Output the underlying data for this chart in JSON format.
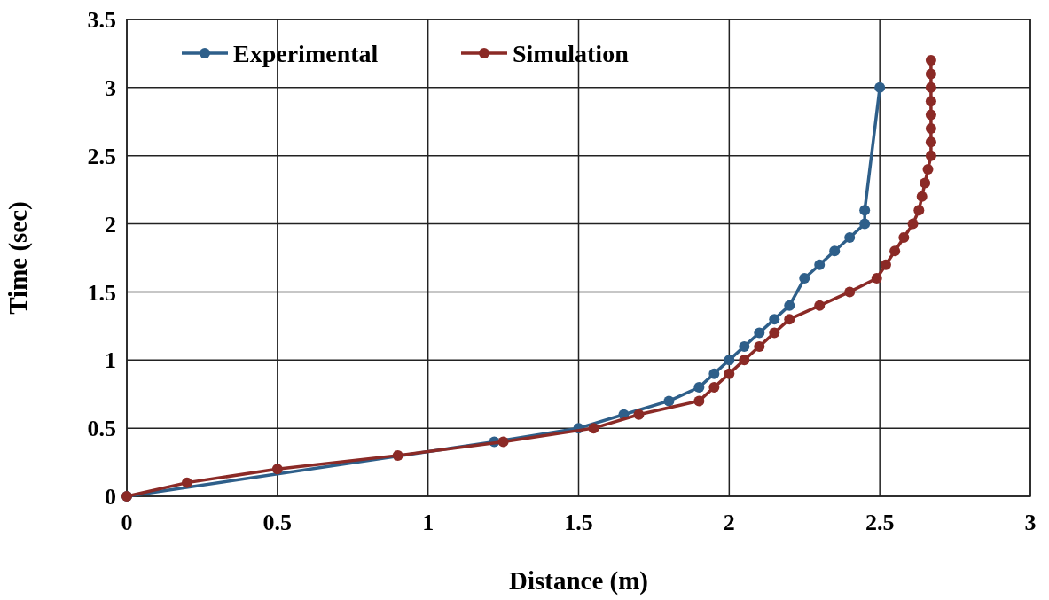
{
  "chart_data": {
    "type": "line",
    "xlabel": "Distance (m)",
    "ylabel": "Time (sec)",
    "xlim": [
      0,
      3
    ],
    "xticks": [
      0,
      0.5,
      1,
      1.5,
      2,
      2.5,
      3
    ],
    "ylim": [
      0,
      3.5
    ],
    "yticks": [
      0,
      0.5,
      1,
      1.5,
      2,
      2.5,
      3,
      3.5
    ],
    "grid": true,
    "legend": "top left",
    "marker": "circle",
    "line_style": "solid",
    "series": [
      {
        "name": "Experimental",
        "color": "#2e5f8a",
        "x": [
          0,
          0.9,
          1.22,
          1.5,
          1.65,
          1.8,
          1.9,
          1.95,
          2.0,
          2.05,
          2.1,
          2.15,
          2.2,
          2.25,
          2.3,
          2.35,
          2.4,
          2.45,
          2.45,
          2.5
        ],
        "values": [
          0,
          null,
          0.4,
          0.5,
          0.6,
          0.7,
          0.8,
          0.9,
          1.0,
          1.1,
          1.2,
          1.3,
          1.4,
          1.6,
          1.7,
          1.8,
          1.9,
          2.0,
          2.1,
          3.0
        ]
      },
      {
        "name": "Simulation",
        "color": "#8b2a26",
        "x": [
          0,
          0.2,
          0.5,
          0.9,
          1.25,
          1.55,
          1.7,
          1.9,
          1.95,
          2.0,
          2.05,
          2.1,
          2.15,
          2.2,
          2.3,
          2.4,
          2.49,
          2.52,
          2.55,
          2.58,
          2.61,
          2.63,
          2.64,
          2.65,
          2.66,
          2.67,
          2.67,
          2.67,
          2.67,
          2.67,
          2.67,
          2.67,
          2.67
        ],
        "values": [
          0,
          0.1,
          0.2,
          0.3,
          0.4,
          0.5,
          0.6,
          0.7,
          0.8,
          0.9,
          1.0,
          1.1,
          1.2,
          1.3,
          1.4,
          1.5,
          1.6,
          1.7,
          1.8,
          1.9,
          2.0,
          2.1,
          2.2,
          2.3,
          2.4,
          2.5,
          2.6,
          2.7,
          2.8,
          2.9,
          3.0,
          3.1,
          3.2
        ]
      }
    ]
  }
}
